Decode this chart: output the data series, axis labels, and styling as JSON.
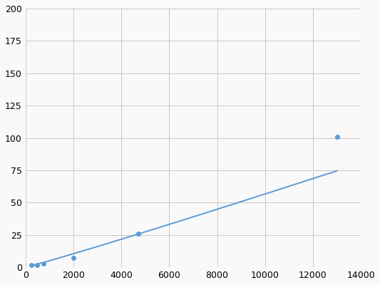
{
  "x": [
    250,
    500,
    750,
    2000,
    4700,
    13000
  ],
  "y": [
    2,
    2,
    3,
    7,
    26,
    101
  ],
  "line_color": "#5b9bd5",
  "marker_color": "#5b9bd5",
  "marker_style": "o",
  "marker_size": 4,
  "linewidth": 1.4,
  "xlim": [
    0,
    14000
  ],
  "ylim": [
    0,
    200
  ],
  "xticks": [
    0,
    2000,
    4000,
    6000,
    8000,
    10000,
    12000,
    14000
  ],
  "yticks": [
    0,
    25,
    50,
    75,
    100,
    125,
    150,
    175,
    200
  ],
  "grid_color": "#c8c8c8",
  "grid_linewidth": 0.7,
  "background_color": "#f9f9f9",
  "tick_labelsize": 9
}
